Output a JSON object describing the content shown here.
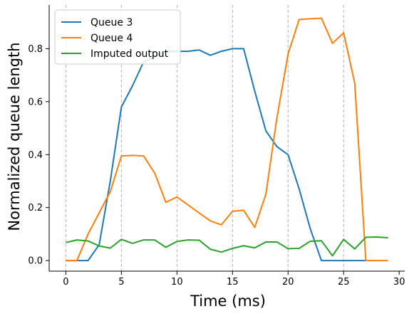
{
  "chart_data": {
    "type": "line",
    "xlabel": "Time (ms)",
    "ylabel": "Normalized queue length",
    "xlim": [
      -1.5,
      30.5
    ],
    "ylim": [
      -0.04,
      0.965
    ],
    "xticks": [
      0,
      5,
      10,
      15,
      20,
      25,
      30
    ],
    "yticks": [
      0.0,
      0.2,
      0.4,
      0.6,
      0.8
    ],
    "ytick_labels": [
      "0.0",
      "0.2",
      "0.4",
      "0.6",
      "0.8"
    ],
    "grid": "vertical dashed lines at x = 0..29 step 5",
    "legend_position": "top-left",
    "x": [
      0,
      1,
      2,
      3,
      4,
      5,
      6,
      7,
      8,
      9,
      10,
      11,
      12,
      13,
      14,
      15,
      16,
      17,
      18,
      19,
      20,
      21,
      22,
      23,
      24,
      25,
      26,
      27,
      28,
      29
    ],
    "series": [
      {
        "name": "Queue 3",
        "color": "#1f77b4",
        "values": [
          0.0,
          0.0,
          0.0,
          0.06,
          0.3,
          0.58,
          0.66,
          0.75,
          0.77,
          0.79,
          0.79,
          0.79,
          0.795,
          0.775,
          0.79,
          0.8,
          0.8,
          0.64,
          0.49,
          0.43,
          0.4,
          0.27,
          0.12,
          0.0,
          0.0,
          0.0,
          0.0,
          0.0,
          null,
          null
        ]
      },
      {
        "name": "Queue 4",
        "color": "#ff7f0e",
        "values": [
          0.0,
          0.0,
          0.1,
          0.18,
          0.26,
          0.395,
          0.397,
          0.395,
          0.33,
          0.22,
          0.24,
          0.21,
          0.18,
          0.15,
          0.135,
          0.186,
          0.19,
          0.125,
          0.25,
          0.54,
          0.78,
          0.91,
          0.913,
          0.915,
          0.82,
          0.86,
          0.67,
          0.0,
          0.0,
          0.0
        ]
      },
      {
        "name": "Imputed output",
        "color": "#2ca02c",
        "values": [
          0.068,
          0.078,
          0.074,
          0.055,
          0.047,
          0.08,
          0.065,
          0.078,
          0.078,
          0.05,
          0.072,
          0.078,
          0.077,
          0.043,
          0.032,
          0.046,
          0.056,
          0.048,
          0.07,
          0.07,
          0.045,
          0.046,
          0.073,
          0.075,
          0.018,
          0.08,
          0.044,
          0.088,
          0.089,
          0.086
        ]
      }
    ]
  }
}
